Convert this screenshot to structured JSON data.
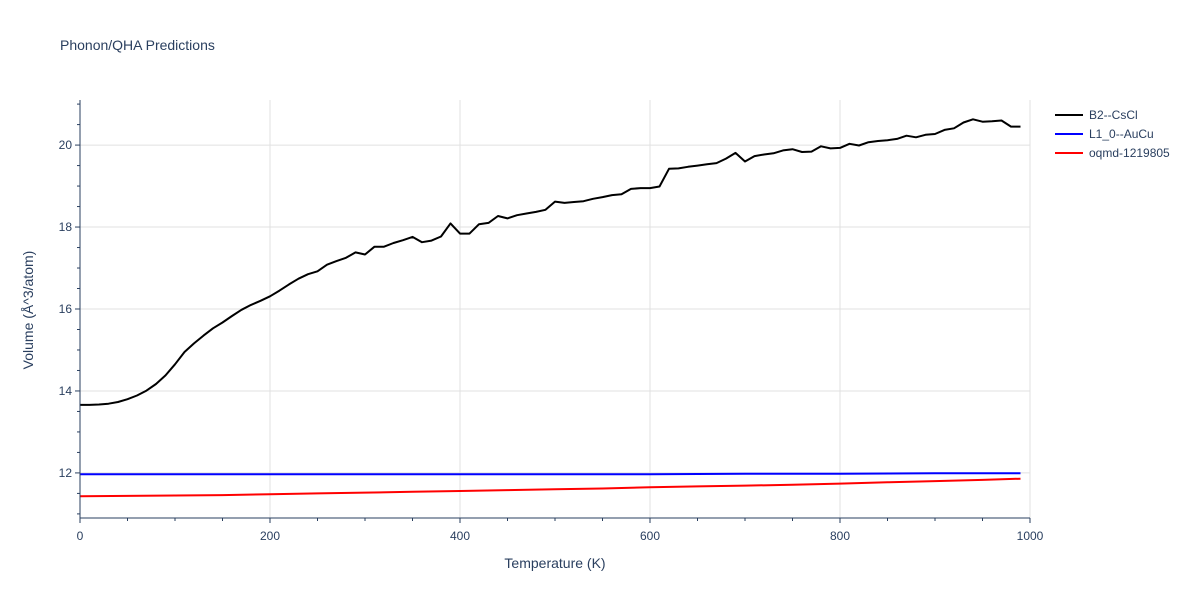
{
  "chart_data": {
    "type": "line",
    "title": "Phonon/QHA Predictions",
    "xlabel": "Temperature (K)",
    "ylabel": "Volume (Å^3/atom)",
    "xlim": [
      0,
      1000
    ],
    "ylim": [
      10.9,
      21.1
    ],
    "x_ticks": [
      0,
      200,
      400,
      600,
      800,
      1000
    ],
    "y_ticks": [
      12,
      14,
      16,
      18,
      20
    ],
    "grid": true,
    "legend_position": "top-right",
    "colors": {
      "axis": "#2a3f5f",
      "grid": "#e1e1e1",
      "background": "#ffffff"
    },
    "series": [
      {
        "name": "B2--CsCl",
        "color": "#000000",
        "x": [
          0,
          10,
          20,
          30,
          40,
          50,
          60,
          70,
          80,
          90,
          100,
          110,
          120,
          130,
          140,
          150,
          160,
          170,
          180,
          190,
          200,
          210,
          220,
          230,
          240,
          250,
          260,
          270,
          280,
          290,
          300,
          310,
          320,
          330,
          340,
          350,
          360,
          370,
          380,
          390,
          400,
          410,
          420,
          430,
          440,
          450,
          460,
          470,
          480,
          490,
          500,
          510,
          520,
          530,
          540,
          550,
          560,
          570,
          580,
          590,
          600,
          610,
          620,
          630,
          640,
          650,
          660,
          670,
          680,
          690,
          700,
          710,
          720,
          730,
          740,
          750,
          760,
          770,
          780,
          790,
          800,
          810,
          820,
          830,
          840,
          850,
          860,
          870,
          880,
          890,
          900,
          910,
          920,
          930,
          940,
          950,
          960,
          970,
          980,
          990
        ],
        "y": [
          13.66,
          13.66,
          13.67,
          13.69,
          13.73,
          13.8,
          13.89,
          14.01,
          14.17,
          14.38,
          14.65,
          14.95,
          15.16,
          15.35,
          15.53,
          15.67,
          15.83,
          15.98,
          16.1,
          16.2,
          16.31,
          16.45,
          16.6,
          16.74,
          16.85,
          16.92,
          17.08,
          17.17,
          17.25,
          17.38,
          17.33,
          17.52,
          17.52,
          17.61,
          17.68,
          17.76,
          17.63,
          17.67,
          17.77,
          18.09,
          17.84,
          17.84,
          18.07,
          18.1,
          18.27,
          18.21,
          18.29,
          18.33,
          18.37,
          18.42,
          18.62,
          18.59,
          18.61,
          18.63,
          18.69,
          18.73,
          18.78,
          18.8,
          18.93,
          18.95,
          18.95,
          18.99,
          19.42,
          19.43,
          19.47,
          19.5,
          19.53,
          19.56,
          19.67,
          19.81,
          19.6,
          19.73,
          19.77,
          19.8,
          19.87,
          19.9,
          19.83,
          19.84,
          19.97,
          19.92,
          19.93,
          20.03,
          19.99,
          20.07,
          20.1,
          20.12,
          20.15,
          20.23,
          20.19,
          20.25,
          20.27,
          20.37,
          20.41,
          20.55,
          20.63,
          20.57,
          20.58,
          20.6,
          20.45,
          20.45
        ]
      },
      {
        "name": "L1_0--AuCu",
        "color": "#0000ff",
        "x": [
          0,
          100,
          200,
          300,
          400,
          500,
          600,
          700,
          800,
          900,
          990
        ],
        "y": [
          11.97,
          11.97,
          11.97,
          11.97,
          11.97,
          11.97,
          11.97,
          11.98,
          11.98,
          11.99,
          11.99
        ]
      },
      {
        "name": "oqmd-1219805",
        "color": "#ff0000",
        "x": [
          0,
          50,
          100,
          150,
          200,
          250,
          300,
          350,
          400,
          450,
          500,
          550,
          600,
          650,
          700,
          750,
          800,
          850,
          900,
          950,
          990
        ],
        "y": [
          11.43,
          11.44,
          11.45,
          11.46,
          11.48,
          11.5,
          11.52,
          11.54,
          11.56,
          11.58,
          11.6,
          11.62,
          11.65,
          11.67,
          11.69,
          11.71,
          11.74,
          11.77,
          11.8,
          11.83,
          11.86
        ]
      }
    ]
  }
}
